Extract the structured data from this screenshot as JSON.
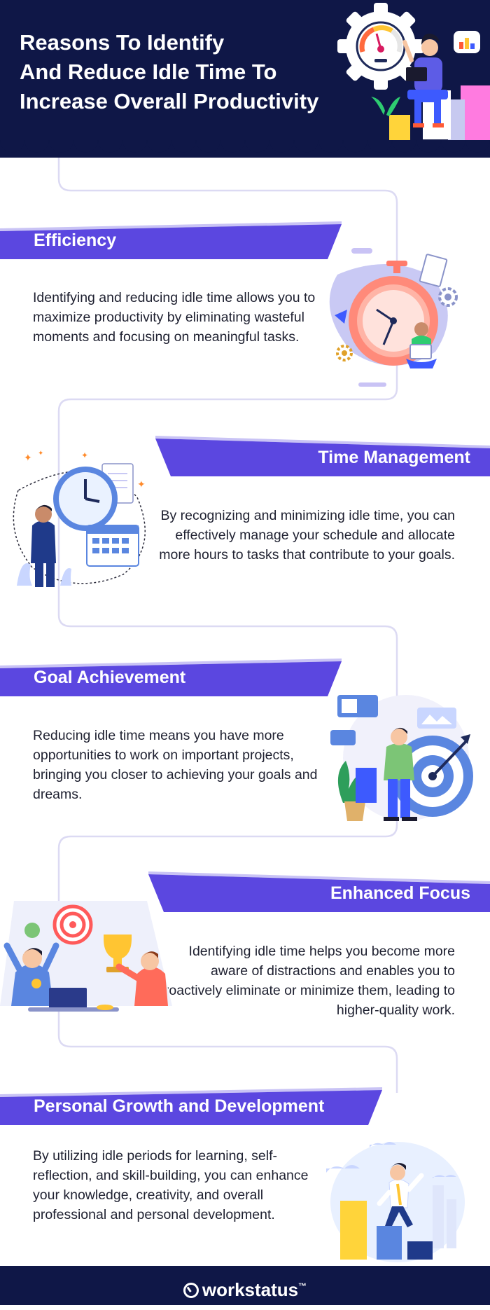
{
  "header": {
    "title_lines": [
      "Reasons To Identify",
      "And Reduce Idle Time To",
      "Increase Overall Productivity"
    ],
    "bg_color": "#0f1747"
  },
  "colors": {
    "accent": "#5b47e0",
    "track": "#dcdaf3"
  },
  "sections": [
    {
      "title": "Efficiency",
      "description": "Identifying and reducing idle time allows you to maximize productivity by eliminating wasteful moments and focusing on meaningful tasks.",
      "illustration": "stopwatch-woman-laptop-illustration"
    },
    {
      "title": "Time Management",
      "description": "By recognizing and minimizing idle time, you can effectively manage your schedule and allocate more hours to tasks that contribute to your goals.",
      "illustration": "man-clock-calendar-illustration"
    },
    {
      "title": "Goal Achievement",
      "description": "Reducing idle time means you have more opportunities to work on important projects, bringing you closer to achieving your goals and dreams.",
      "illustration": "man-target-dart-illustration"
    },
    {
      "title": "Enhanced Focus",
      "description": "Identifying idle time helps you become more aware of distractions and enables you to proactively eliminate or minimize them, leading to higher-quality work.",
      "illustration": "team-trophy-celebration-illustration"
    },
    {
      "title": "Personal Growth and Development",
      "description": "By utilizing idle periods for learning, self-reflection, and skill-building, you can enhance your knowledge, creativity, and overall professional and personal development.",
      "illustration": "man-climbing-steps-illustration"
    }
  ],
  "footer": {
    "brand": "workstatus",
    "trademark": "™",
    "logo_icon": "stopwatch-logo-icon"
  }
}
